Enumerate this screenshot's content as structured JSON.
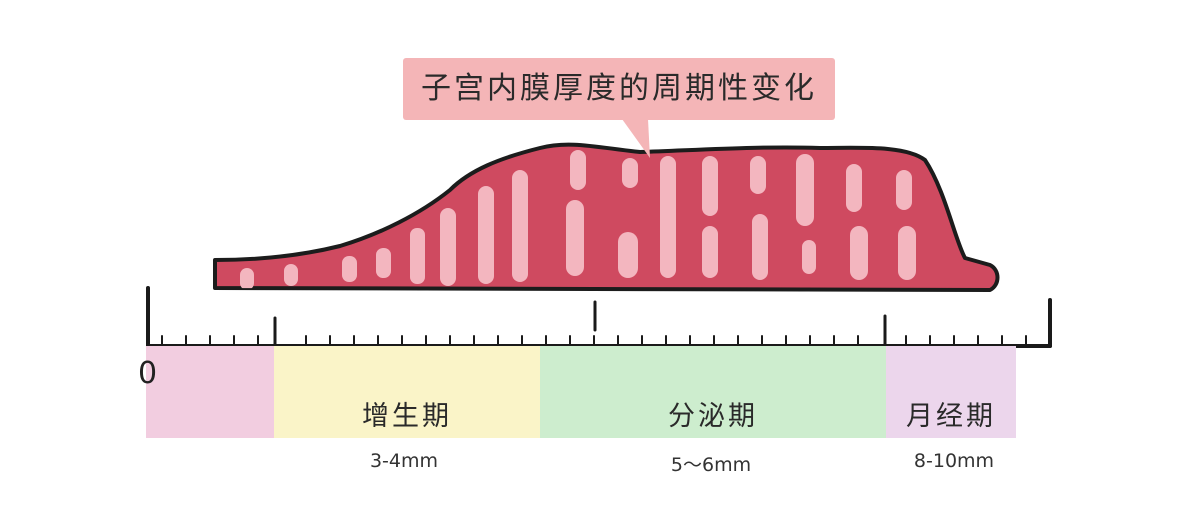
{
  "title": "子宫内膜厚度的周期性变化",
  "axis": {
    "origin_label": "0"
  },
  "phases": [
    {
      "id": "pre",
      "label": "",
      "measurement": "",
      "color": "#f2cde0"
    },
    {
      "id": "proliferative",
      "label": "增生期",
      "measurement": "3-4mm",
      "color": "#faf4c8"
    },
    {
      "id": "secretory",
      "label": "分泌期",
      "measurement": "5～6mm",
      "color": "#cdedce"
    },
    {
      "id": "menstrual",
      "label": "月经期",
      "measurement": "8-10mm",
      "color": "#ecd6ec"
    }
  ],
  "colors": {
    "endometrium": "#cf4a60",
    "endometrium_outline": "#1c1c1c",
    "stripes": "#f3b6bf",
    "callout": "#f4b5b7"
  }
}
